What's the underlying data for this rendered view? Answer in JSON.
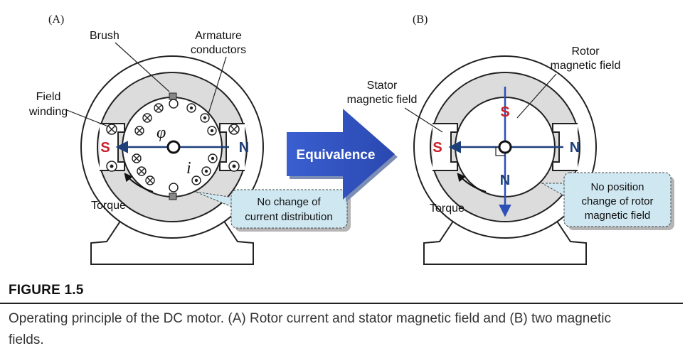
{
  "panel_a": {
    "tag": "(A)",
    "brush": "Brush",
    "armature_line1": "Armature",
    "armature_line2": "conductors",
    "field_line1": "Field",
    "field_line2": "winding",
    "pole_s": "S",
    "pole_n": "N",
    "phi": "φ",
    "current": "i",
    "torque": "Torque",
    "callout_line1": "No change of",
    "callout_line2": "current distribution"
  },
  "equivalence": "Equivalence",
  "panel_b": {
    "tag": "(B)",
    "stator_line1": "Stator",
    "stator_line2": "magnetic field",
    "rotor_line1": "Rotor",
    "rotor_line2": "magnetic field",
    "pole_s": "S",
    "pole_n": "N",
    "rotor_s": "S",
    "rotor_n": "N",
    "torque": "Torque",
    "callout_line1": "No position",
    "callout_line2": "change of rotor",
    "callout_line3": "magnetic field"
  },
  "caption": {
    "number": "FIGURE 1.5",
    "text": "Operating principle of the DC motor. (A) Rotor current and stator magnetic field and (B) two magnetic fields."
  },
  "colors": {
    "arrow_dark": "#1d3f7a",
    "arrow_blue": "#2c4fb8",
    "callout_fill": "#cfe7f1",
    "stator_fill": "#dcdcdc",
    "pole_s": "#c8202a"
  }
}
